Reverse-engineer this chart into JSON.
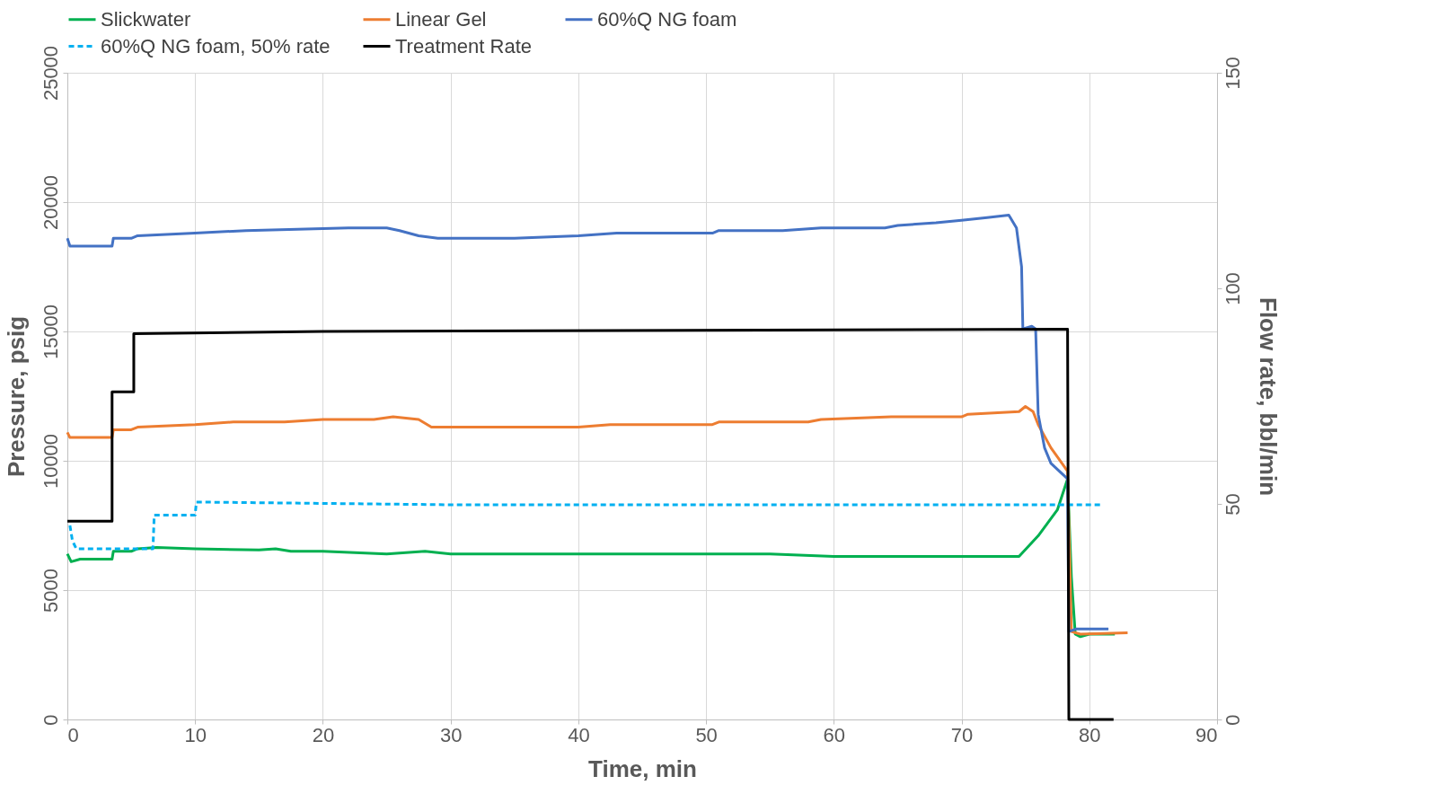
{
  "chart_data": {
    "type": "line",
    "xlabel": "Time, min",
    "ylabel": "Pressure, psig",
    "y2label": "Flow rate, bbl/min",
    "xlim": [
      0,
      90
    ],
    "xticks": [
      0,
      10,
      20,
      30,
      40,
      50,
      60,
      70,
      80,
      90
    ],
    "ylim": [
      0,
      25000
    ],
    "yticks": [
      0,
      5000,
      10000,
      15000,
      20000,
      25000
    ],
    "y2lim": [
      0,
      150
    ],
    "y2ticks": [
      0,
      50,
      100,
      150
    ],
    "grid": true,
    "legend": "top",
    "marker": "none",
    "series": [
      {
        "name": "Slickwater",
        "color": "#00b050",
        "line_style": "solid",
        "x": [
          0,
          0.3,
          1,
          3.5,
          3.6,
          5,
          5.5,
          7,
          10,
          15,
          16.3,
          17.5,
          20,
          25,
          28,
          30,
          50,
          55,
          60,
          70,
          74.5,
          76,
          77.5,
          78.3,
          78.6,
          78.9,
          79.3,
          80,
          82
        ],
        "values": [
          6400,
          6100,
          6200,
          6200,
          6500,
          6500,
          6600,
          6650,
          6600,
          6550,
          6600,
          6500,
          6500,
          6400,
          6500,
          6400,
          6400,
          6400,
          6300,
          6300,
          6300,
          7100,
          8100,
          9300,
          5500,
          3300,
          3200,
          3300,
          3300
        ]
      },
      {
        "name": "Linear Gel",
        "color": "#ed7d31",
        "line_style": "solid",
        "x": [
          0,
          0.2,
          3.5,
          3.6,
          5,
          5.5,
          10,
          13,
          17,
          20,
          24,
          25.5,
          27.5,
          28.5,
          40,
          42.5,
          50.5,
          51,
          58,
          59,
          64.5,
          70,
          70.5,
          74.5,
          75,
          75.6,
          76,
          77,
          78.3,
          78.6,
          79.3,
          83
        ],
        "values": [
          11100,
          10900,
          10900,
          11200,
          11200,
          11300,
          11400,
          11500,
          11500,
          11600,
          11600,
          11700,
          11600,
          11300,
          11300,
          11400,
          11400,
          11500,
          11500,
          11600,
          11700,
          11700,
          11800,
          11900,
          12100,
          11900,
          11400,
          10500,
          9600,
          3400,
          3300,
          3350
        ]
      },
      {
        "name": "60%Q NG foam",
        "color": "#4472c4",
        "line_style": "solid",
        "x": [
          0,
          0.2,
          3.5,
          3.6,
          5,
          5.5,
          10,
          14,
          18,
          22,
          25,
          26,
          27.5,
          29,
          35,
          40,
          43,
          50.5,
          51,
          56,
          59,
          64,
          65,
          68,
          70,
          72,
          73.7,
          74.3,
          74.7,
          74.8,
          75.5,
          75.8,
          76,
          76.5,
          77,
          78.3,
          78.4,
          79,
          81.5
        ],
        "values": [
          18600,
          18300,
          18300,
          18600,
          18600,
          18700,
          18800,
          18900,
          18950,
          19000,
          19000,
          18900,
          18700,
          18600,
          18600,
          18700,
          18800,
          18800,
          18900,
          18900,
          19000,
          19000,
          19100,
          19200,
          19300,
          19400,
          19500,
          19000,
          17500,
          15100,
          15200,
          15100,
          11800,
          10500,
          9900,
          9300,
          3400,
          3500,
          3500
        ]
      },
      {
        "name": "60%Q NG foam, 50% rate",
        "color": "#00b0f0",
        "line_style": "dashed",
        "x": [
          0.2,
          0.4,
          0.7,
          6.7,
          6.8,
          10,
          10.1,
          11,
          30,
          81
        ],
        "values": [
          7500,
          6900,
          6600,
          6600,
          7900,
          7900,
          8400,
          8400,
          8300,
          8300
        ]
      },
      {
        "name": "Treatment Rate",
        "color": "#000000",
        "line_style": "solid",
        "axis": "y2",
        "x": [
          0,
          3.5,
          3.5,
          5.2,
          5.2,
          20,
          78.3,
          78.4,
          81.9
        ],
        "values": [
          46,
          46,
          76,
          76,
          89.5,
          90,
          90.5,
          0,
          0
        ]
      }
    ]
  }
}
